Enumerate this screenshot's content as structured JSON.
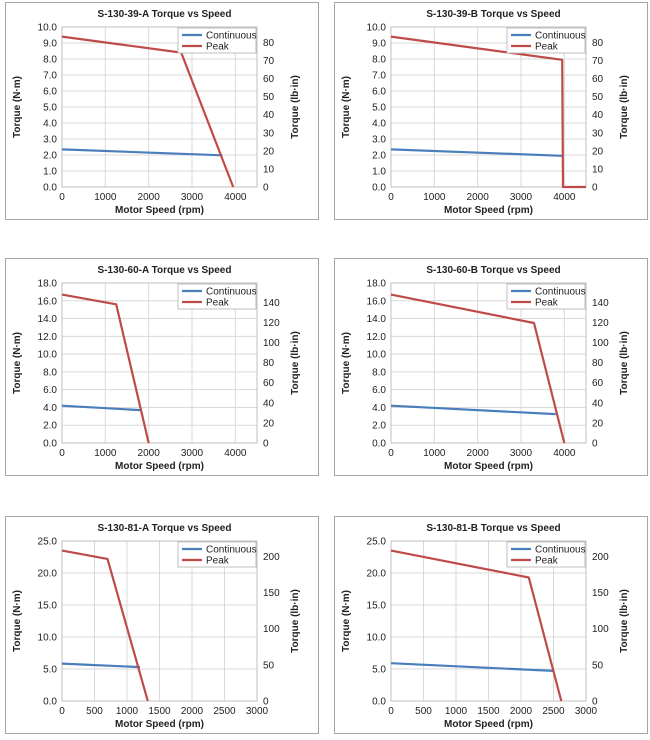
{
  "chart_data": [
    {
      "type": "line",
      "title": "S-130-39-A Torque vs Speed",
      "xlabel": "Motor Speed (rpm)",
      "ylabel": "Torque (N·m)",
      "y2label": "Torque (lb·in)",
      "xlim": [
        0,
        4500
      ],
      "xticks": [
        0,
        1000,
        2000,
        3000,
        4000
      ],
      "ylim": [
        0,
        10
      ],
      "yticks": [
        0,
        1,
        2,
        3,
        4,
        5,
        6,
        7,
        8,
        9,
        10
      ],
      "ydecimals": 1,
      "y2factor": 8.85,
      "y2ticks": [
        0,
        10,
        20,
        30,
        40,
        50,
        60,
        70,
        80
      ],
      "legend": "top-right",
      "grid": true,
      "series": [
        {
          "name": "Continuous",
          "color": "#4a7ebb",
          "points": [
            [
              0,
              2.35
            ],
            [
              3700,
              1.98
            ]
          ]
        },
        {
          "name": "Peak",
          "color": "#be4b48",
          "points": [
            [
              0,
              9.4
            ],
            [
              2750,
              8.4
            ],
            [
              3950,
              0
            ]
          ]
        }
      ]
    },
    {
      "type": "line",
      "title": "S-130-39-B Torque vs Speed",
      "xlabel": "Motor Speed (rpm)",
      "ylabel": "Torque (N·m)",
      "y2label": "Torque (lb·in)",
      "xlim": [
        0,
        4500
      ],
      "xticks": [
        0,
        1000,
        2000,
        3000,
        4000
      ],
      "ylim": [
        0,
        10
      ],
      "yticks": [
        0,
        1,
        2,
        3,
        4,
        5,
        6,
        7,
        8,
        9,
        10
      ],
      "ydecimals": 1,
      "y2factor": 8.85,
      "y2ticks": [
        0,
        10,
        20,
        30,
        40,
        50,
        60,
        70,
        80
      ],
      "legend": "top-right",
      "grid": true,
      "series": [
        {
          "name": "Continuous",
          "color": "#4a7ebb",
          "points": [
            [
              0,
              2.35
            ],
            [
              3950,
              1.95
            ]
          ]
        },
        {
          "name": "Peak",
          "color": "#be4b48",
          "points": [
            [
              0,
              9.4
            ],
            [
              3950,
              7.95
            ],
            [
              3970,
              0
            ],
            [
              4500,
              0
            ]
          ]
        }
      ]
    },
    {
      "type": "line",
      "title": "S-130-60-A Torque vs Speed",
      "xlabel": "Motor Speed (rpm)",
      "ylabel": "Torque (N·m)",
      "y2label": "Torque (lb·in)",
      "xlim": [
        0,
        4500
      ],
      "xticks": [
        0,
        1000,
        2000,
        3000,
        4000
      ],
      "ylim": [
        0,
        18
      ],
      "yticks": [
        0,
        2,
        4,
        6,
        8,
        10,
        12,
        14,
        16,
        18
      ],
      "ydecimals": 1,
      "y2factor": 8.85,
      "y2ticks": [
        0,
        20,
        40,
        60,
        80,
        100,
        120,
        140
      ],
      "legend": "top-right",
      "grid": true,
      "series": [
        {
          "name": "Continuous",
          "color": "#4a7ebb",
          "points": [
            [
              0,
              4.2
            ],
            [
              1800,
              3.7
            ]
          ]
        },
        {
          "name": "Peak",
          "color": "#be4b48",
          "points": [
            [
              0,
              16.7
            ],
            [
              1250,
              15.6
            ],
            [
              2000,
              0
            ]
          ]
        }
      ]
    },
    {
      "type": "line",
      "title": "S-130-60-B Torque vs Speed",
      "xlabel": "Motor Speed (rpm)",
      "ylabel": "Torque (N·m)",
      "y2label": "Torque (lb·in)",
      "xlim": [
        0,
        4500
      ],
      "xticks": [
        0,
        1000,
        2000,
        3000,
        4000
      ],
      "ylim": [
        0,
        18
      ],
      "yticks": [
        0,
        2,
        4,
        6,
        8,
        10,
        12,
        14,
        16,
        18
      ],
      "ydecimals": 1,
      "y2factor": 8.85,
      "y2ticks": [
        0,
        20,
        40,
        60,
        80,
        100,
        120,
        140
      ],
      "legend": "top-right",
      "grid": true,
      "series": [
        {
          "name": "Continuous",
          "color": "#4a7ebb",
          "points": [
            [
              0,
              4.2
            ],
            [
              3800,
              3.25
            ]
          ]
        },
        {
          "name": "Peak",
          "color": "#be4b48",
          "points": [
            [
              0,
              16.7
            ],
            [
              3300,
              13.5
            ],
            [
              4000,
              0
            ]
          ]
        }
      ]
    },
    {
      "type": "line",
      "title": "S-130-81-A Torque vs Speed",
      "xlabel": "Motor Speed (rpm)",
      "ylabel": "Torque (N·m)",
      "y2label": "Torque (lb·in)",
      "xlim": [
        0,
        3000
      ],
      "xticks": [
        0,
        500,
        1000,
        1500,
        2000,
        2500,
        3000
      ],
      "ylim": [
        0,
        25
      ],
      "yticks": [
        0,
        5,
        10,
        15,
        20,
        25
      ],
      "ydecimals": 1,
      "y2factor": 8.85,
      "y2ticks": [
        0,
        50,
        100,
        150,
        200
      ],
      "legend": "top-right",
      "grid": true,
      "series": [
        {
          "name": "Continuous",
          "color": "#4a7ebb",
          "points": [
            [
              0,
              5.85
            ],
            [
              1200,
              5.3
            ]
          ]
        },
        {
          "name": "Peak",
          "color": "#be4b48",
          "points": [
            [
              0,
              23.5
            ],
            [
              700,
              22.2
            ],
            [
              1320,
              0
            ]
          ]
        }
      ]
    },
    {
      "type": "line",
      "title": "S-130-81-B Torque vs Speed",
      "xlabel": "Motor Speed (rpm)",
      "ylabel": "Torque (N·m)",
      "y2label": "Torque (lb·in)",
      "xlim": [
        0,
        3000
      ],
      "xticks": [
        0,
        500,
        1000,
        1500,
        2000,
        2500,
        3000
      ],
      "ylim": [
        0,
        25
      ],
      "yticks": [
        0,
        5,
        10,
        15,
        20,
        25
      ],
      "ydecimals": 1,
      "y2factor": 8.85,
      "y2ticks": [
        0,
        50,
        100,
        150,
        200
      ],
      "legend": "top-right",
      "grid": true,
      "series": [
        {
          "name": "Continuous",
          "color": "#4a7ebb",
          "points": [
            [
              0,
              5.9
            ],
            [
              2500,
              4.7
            ]
          ]
        },
        {
          "name": "Peak",
          "color": "#be4b48",
          "points": [
            [
              0,
              23.5
            ],
            [
              2120,
              19.3
            ],
            [
              2620,
              0
            ]
          ]
        }
      ]
    }
  ]
}
